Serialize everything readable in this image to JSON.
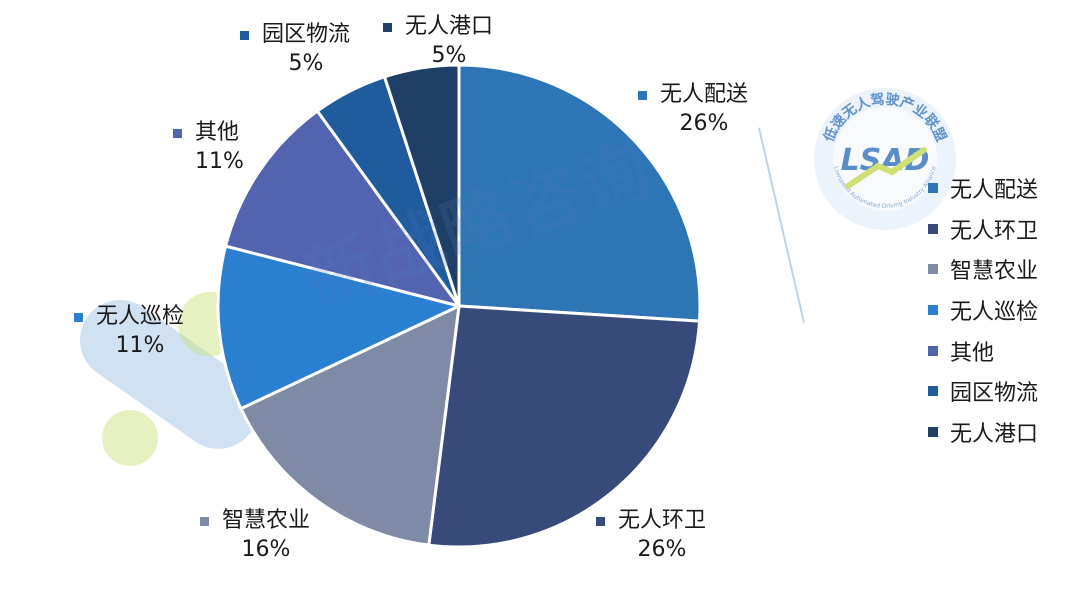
{
  "chart_data": {
    "type": "pie",
    "categories": [
      "无人配送",
      "无人环卫",
      "智慧农业",
      "无人巡检",
      "其他",
      "园区物流",
      "无人港口"
    ],
    "values": [
      26,
      26,
      16,
      11,
      11,
      5,
      5
    ],
    "labels": [
      "26%",
      "26%",
      "16%",
      "11%",
      "11%",
      "5%",
      "5%"
    ],
    "colors": [
      "#2e75b6",
      "#384a7a",
      "#7f8aa6",
      "#2a7fd0",
      "#5264b0",
      "#1f5b9d",
      "#1f3f66"
    ],
    "legend": "right",
    "title": ""
  },
  "watermark": {
    "text": "新战略咨询",
    "seal_text": "低速无人驾驶产业联盟",
    "seal_sub": "Lowspeed Automated Driving Industry Alliance",
    "seal_logo": "LSAD"
  }
}
